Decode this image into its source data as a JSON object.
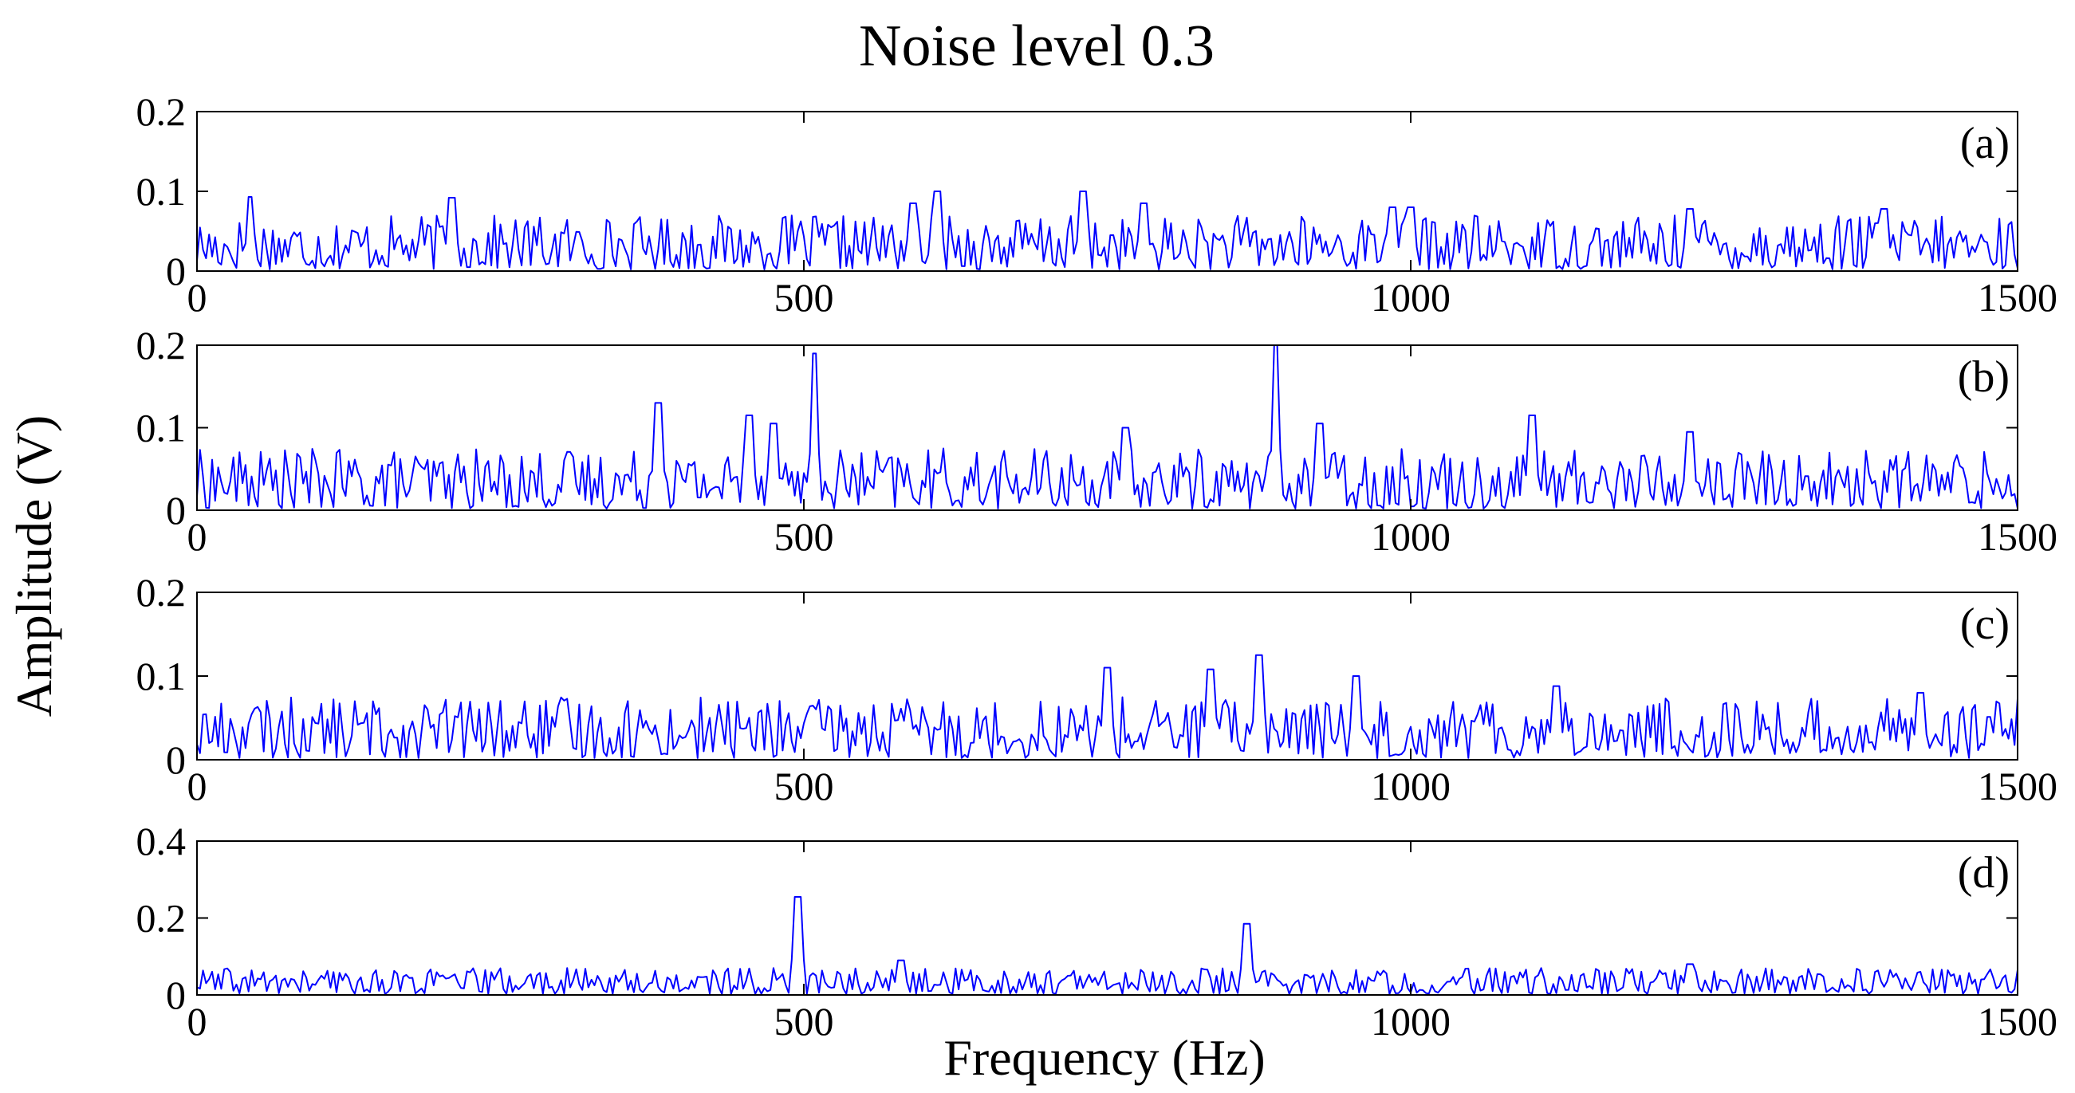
{
  "figure": {
    "title": "Noise level 0.3",
    "xlabel": "Frequency (Hz)",
    "ylabel": "Amplitude (V)"
  },
  "chart_data": [
    {
      "type": "line",
      "panel": "(a)",
      "color": "#0000ff",
      "xlim": [
        0,
        1500
      ],
      "ylim": [
        0,
        0.2
      ],
      "xticks": [
        0,
        500,
        1000,
        1500
      ],
      "xtick_labels": [
        "0",
        "500",
        "1000",
        "1500"
      ],
      "yticks": [
        0,
        0.1,
        0.2
      ],
      "ytick_labels": [
        "0",
        "0.1",
        "0.2"
      ],
      "grid": false,
      "noise_range": [
        0.002,
        0.07
      ],
      "peaks": [
        [
          43,
          0.093
        ],
        [
          210,
          0.092
        ],
        [
          590,
          0.085
        ],
        [
          610,
          0.1
        ],
        [
          730,
          0.1
        ],
        [
          780,
          0.085
        ],
        [
          985,
          0.08
        ],
        [
          1000,
          0.08
        ],
        [
          1230,
          0.078
        ],
        [
          1390,
          0.078
        ]
      ]
    },
    {
      "type": "line",
      "panel": "(b)",
      "color": "#0000ff",
      "xlim": [
        0,
        1500
      ],
      "ylim": [
        0,
        0.2
      ],
      "xticks": [
        0,
        500,
        1000,
        1500
      ],
      "xtick_labels": [
        "0",
        "500",
        "1000",
        "1500"
      ],
      "yticks": [
        0,
        0.1,
        0.2
      ],
      "ytick_labels": [
        "0",
        "0.1",
        "0.2"
      ],
      "grid": false,
      "noise_range": [
        0.002,
        0.075
      ],
      "peaks": [
        [
          380,
          0.13
        ],
        [
          455,
          0.115
        ],
        [
          475,
          0.105
        ],
        [
          508,
          0.19
        ],
        [
          765,
          0.1
        ],
        [
          888,
          0.2
        ],
        [
          925,
          0.105
        ],
        [
          1100,
          0.115
        ],
        [
          1230,
          0.095
        ]
      ]
    },
    {
      "type": "line",
      "panel": "(c)",
      "color": "#0000ff",
      "xlim": [
        0,
        1500
      ],
      "ylim": [
        0,
        0.2
      ],
      "xticks": [
        0,
        500,
        1000,
        1500
      ],
      "xtick_labels": [
        "0",
        "500",
        "1000",
        "1500"
      ],
      "yticks": [
        0,
        0.1,
        0.2
      ],
      "ytick_labels": [
        "0",
        "0.1",
        "0.2"
      ],
      "grid": false,
      "noise_range": [
        0.002,
        0.075
      ],
      "peaks": [
        [
          750,
          0.11
        ],
        [
          835,
          0.108
        ],
        [
          875,
          0.125
        ],
        [
          955,
          0.1
        ],
        [
          1120,
          0.088
        ],
        [
          1420,
          0.08
        ]
      ]
    },
    {
      "type": "line",
      "panel": "(d)",
      "color": "#0000ff",
      "xlim": [
        0,
        1500
      ],
      "ylim": [
        0,
        0.4
      ],
      "xticks": [
        0,
        500,
        1000,
        1500
      ],
      "xtick_labels": [
        "0",
        "500",
        "1000",
        "1500"
      ],
      "yticks": [
        0,
        0.2,
        0.4
      ],
      "ytick_labels": [
        "0",
        "0.2",
        "0.4"
      ],
      "grid": false,
      "noise_range": [
        0.002,
        0.07
      ],
      "peaks": [
        [
          495,
          0.255
        ],
        [
          865,
          0.185
        ],
        [
          580,
          0.09
        ],
        [
          1230,
          0.08
        ]
      ]
    }
  ]
}
